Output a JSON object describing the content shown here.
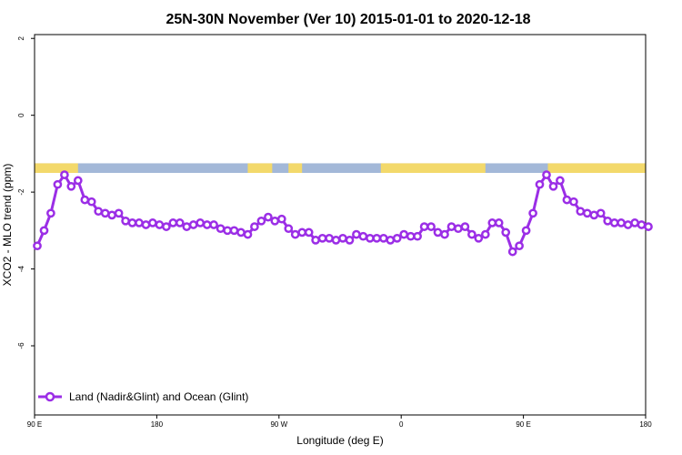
{
  "chart_data": {
    "type": "line",
    "title": "25N-30N November (Ver 10)   2015-01-01 to 2020-12-18",
    "xlabel": "Longitude (deg E)",
    "ylabel": "XCO2 - MLO trend (ppm)",
    "x_ticks": [
      {
        "value": 90,
        "label": "90 E"
      },
      {
        "value": 180,
        "label": "180"
      },
      {
        "value": 270,
        "label": "90 W"
      },
      {
        "value": 360,
        "label": "0"
      },
      {
        "value": 450,
        "label": "90 E"
      },
      {
        "value": 540,
        "label": "180"
      }
    ],
    "y_ticks": [
      {
        "value": 2,
        "label": "2"
      },
      {
        "value": 0,
        "label": "0"
      },
      {
        "value": -2,
        "label": "-2"
      },
      {
        "value": -4,
        "label": "-4"
      },
      {
        "value": -6,
        "label": "-6"
      }
    ],
    "xlim": [
      90,
      540
    ],
    "ylim": [
      -7.8,
      2.1
    ],
    "land_ocean_band": {
      "y_range": [
        -1.5,
        -1.25
      ],
      "ocean_color": "#a3b8d8",
      "land_color": "#f3d96b",
      "land_segments": [
        [
          90,
          122
        ],
        [
          247,
          265
        ],
        [
          277,
          287
        ],
        [
          345,
          422
        ],
        [
          468,
          545
        ]
      ]
    },
    "series": [
      {
        "name": "Land (Nadir&Glint) and Ocean (Glint)",
        "color": "#9b2ee6",
        "x": [
          92,
          97,
          102,
          107,
          112,
          117,
          122,
          127,
          132,
          137,
          142,
          147,
          152,
          157,
          162,
          167,
          172,
          177,
          182,
          187,
          192,
          197,
          202,
          207,
          212,
          217,
          222,
          227,
          232,
          237,
          242,
          247,
          252,
          257,
          262,
          267,
          272,
          277,
          282,
          287,
          292,
          297,
          302,
          307,
          312,
          317,
          322,
          327,
          332,
          337,
          342,
          347,
          352,
          357,
          362,
          367,
          372,
          377,
          382,
          387,
          392,
          397,
          402,
          407,
          412,
          417,
          422,
          427,
          432,
          437,
          442,
          447,
          452,
          457,
          462,
          467,
          472,
          477,
          482,
          487,
          492,
          497,
          502,
          507,
          512,
          517,
          522,
          527,
          532,
          537,
          542
        ],
        "y": [
          -3.4,
          -3.0,
          -2.55,
          -1.8,
          -1.55,
          -1.85,
          -1.7,
          -2.2,
          -2.25,
          -2.5,
          -2.55,
          -2.6,
          -2.55,
          -2.75,
          -2.8,
          -2.8,
          -2.85,
          -2.8,
          -2.85,
          -2.9,
          -2.8,
          -2.8,
          -2.9,
          -2.85,
          -2.8,
          -2.85,
          -2.85,
          -2.95,
          -3.0,
          -3.0,
          -3.05,
          -3.1,
          -2.9,
          -2.75,
          -2.65,
          -2.75,
          -2.7,
          -2.95,
          -3.1,
          -3.05,
          -3.05,
          -3.25,
          -3.2,
          -3.2,
          -3.25,
          -3.2,
          -3.25,
          -3.1,
          -3.15,
          -3.2,
          -3.2,
          -3.2,
          -3.25,
          -3.2,
          -3.1,
          -3.15,
          -3.15,
          -2.9,
          -2.9,
          -3.05,
          -3.1,
          -2.9,
          -2.95,
          -2.9,
          -3.1,
          -3.2,
          -3.1,
          -2.8,
          -2.8,
          -3.05,
          -3.55,
          -3.4,
          -3.0,
          -2.55,
          -1.8,
          -1.55,
          -1.85,
          -1.7,
          -2.2,
          -2.25,
          -2.5,
          -2.55,
          -2.6,
          -2.55,
          -2.75,
          -2.8,
          -2.8,
          -2.85,
          -2.8,
          -2.85,
          -2.9
        ]
      }
    ],
    "legend": {
      "position": "bottom-left"
    },
    "grid": false
  }
}
